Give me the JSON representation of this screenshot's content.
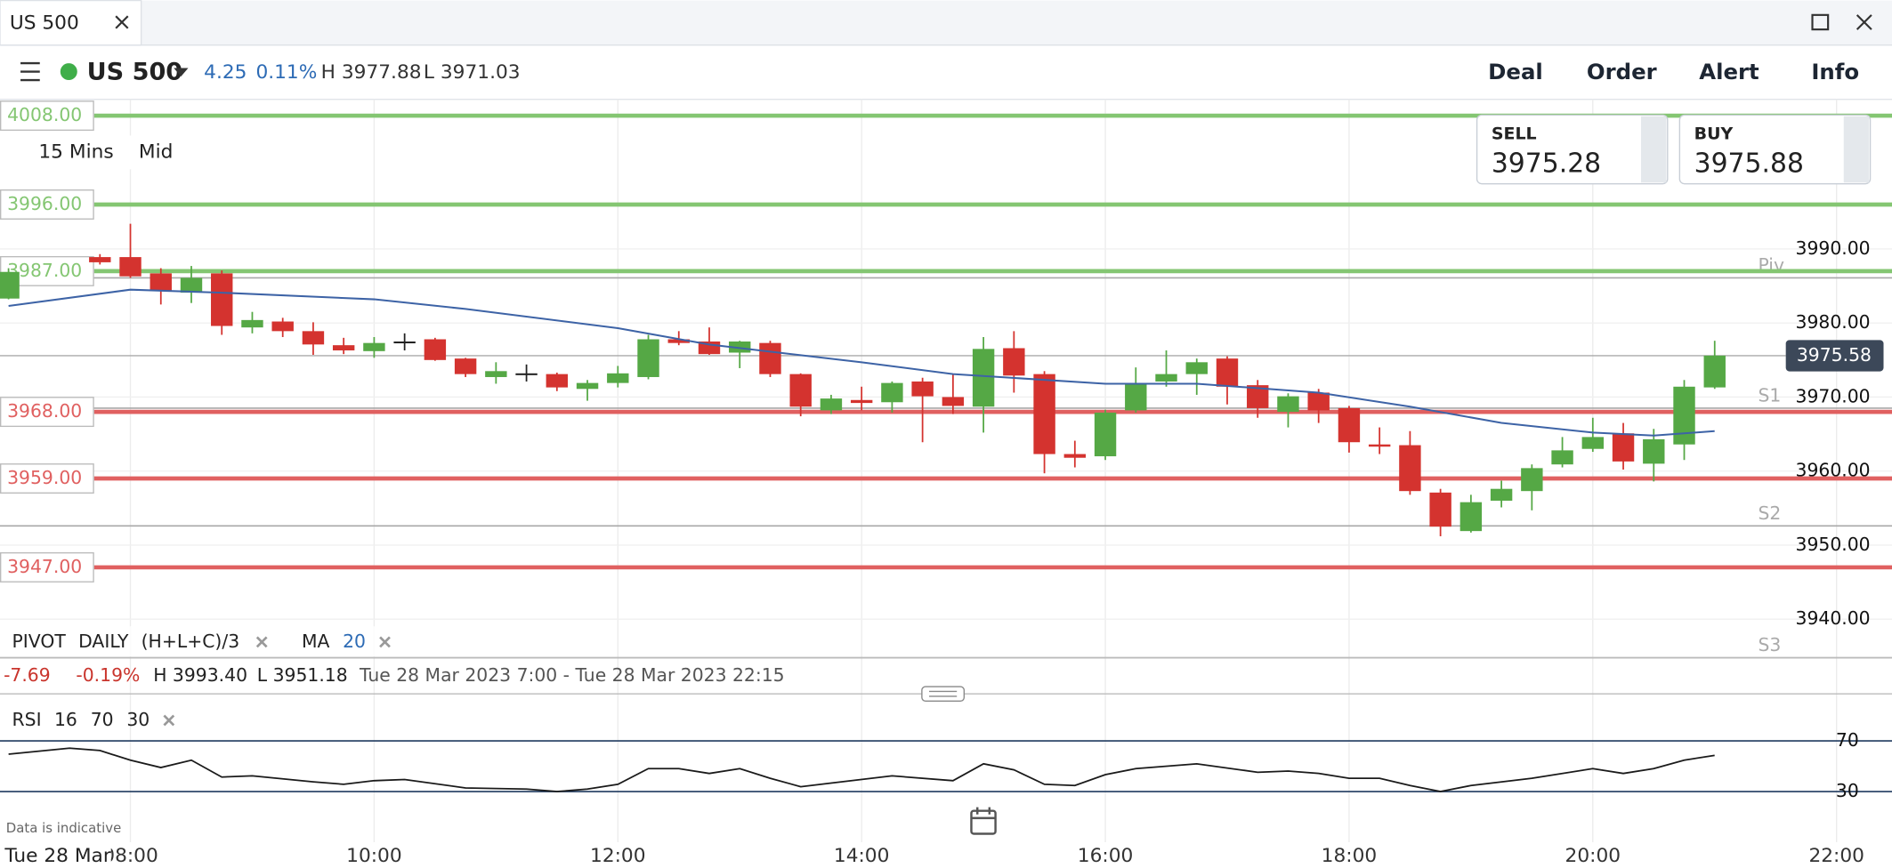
{
  "tab": {
    "title": "US 500"
  },
  "header": {
    "market": "US 500",
    "change": "4.25",
    "change_pct": "0.11%",
    "high": "H 3977.88",
    "low": "L 3971.03",
    "buttons": [
      "Deal",
      "Order",
      "Alert",
      "Info"
    ]
  },
  "chart": {
    "type": "candlestick",
    "interval": "15 Mins",
    "price_type": "Mid",
    "sell": {
      "label": "SELL",
      "price": "3975.28"
    },
    "buy": {
      "label": "BUY",
      "price": "3975.88"
    },
    "xlim": [
      6.93,
      22.455
    ],
    "xticks": [
      {
        "value": 8,
        "label": "08:00"
      },
      {
        "value": 10,
        "label": "10:00"
      },
      {
        "value": 12,
        "label": "12:00"
      },
      {
        "value": 14,
        "label": "14:00"
      },
      {
        "value": 16,
        "label": "16:00"
      },
      {
        "value": 18,
        "label": "18:00"
      },
      {
        "value": 20,
        "label": "20:00"
      },
      {
        "value": 22,
        "label": "22:00"
      }
    ],
    "ylim": [
      3934.8,
      4010.2
    ],
    "yticks": [
      {
        "value": 3990,
        "label": "3990.00"
      },
      {
        "value": 3980,
        "label": "3980.00"
      },
      {
        "value": 3970,
        "label": "3970.00"
      },
      {
        "value": 3960,
        "label": "3960.00"
      },
      {
        "value": 3950,
        "label": "3950.00"
      },
      {
        "value": 3940,
        "label": "3940.00"
      }
    ],
    "up_color": "#55a845",
    "down_color": "#d4332f",
    "candles": [
      {
        "t": 7,
        "o": 3983.3,
        "h": 3987.4,
        "l": 3983.2,
        "c": 3986.9
      },
      {
        "t": 7.75,
        "o": 3988.9,
        "h": 3989.3,
        "l": 3987.9,
        "c": 3988.2
      },
      {
        "t": 8,
        "o": 3988.9,
        "h": 3993.4,
        "l": 3986.1,
        "c": 3986.3
      },
      {
        "t": 8.25,
        "o": 3986.7,
        "h": 3987.4,
        "l": 3982.5,
        "c": 3984.3
      },
      {
        "t": 8.5,
        "o": 3984.1,
        "h": 3987.7,
        "l": 3982.7,
        "c": 3986.1
      },
      {
        "t": 8.75,
        "o": 3986.7,
        "h": 3987.1,
        "l": 3978.4,
        "c": 3979.6
      },
      {
        "t": 9,
        "o": 3979.4,
        "h": 3981.5,
        "l": 3978.6,
        "c": 3980.4
      },
      {
        "t": 9.25,
        "o": 3980.2,
        "h": 3980.7,
        "l": 3978.1,
        "c": 3978.9
      },
      {
        "t": 9.5,
        "o": 3978.9,
        "h": 3980.1,
        "l": 3975.7,
        "c": 3977.1
      },
      {
        "t": 9.75,
        "o": 3977.0,
        "h": 3978.0,
        "l": 3975.8,
        "c": 3976.3
      },
      {
        "t": 10,
        "o": 3976.2,
        "h": 3978.1,
        "l": 3975.3,
        "c": 3977.3
      },
      {
        "t": 10.25,
        "o": 3977.5,
        "h": 3978.6,
        "l": 3976.3,
        "c": 3977.5
      },
      {
        "t": 10.5,
        "o": 3977.8,
        "h": 3978.0,
        "l": 3974.9,
        "c": 3975.0
      },
      {
        "t": 10.75,
        "o": 3975.2,
        "h": 3975.3,
        "l": 3972.7,
        "c": 3973.1
      },
      {
        "t": 11,
        "o": 3972.7,
        "h": 3974.7,
        "l": 3971.8,
        "c": 3973.5
      },
      {
        "t": 11.25,
        "o": 3973.2,
        "h": 3974.4,
        "l": 3972.1,
        "c": 3973.2
      },
      {
        "t": 11.5,
        "o": 3973.1,
        "h": 3973.3,
        "l": 3970.8,
        "c": 3971.3
      },
      {
        "t": 11.75,
        "o": 3971.1,
        "h": 3972.3,
        "l": 3969.5,
        "c": 3971.9
      },
      {
        "t": 12,
        "o": 3971.9,
        "h": 3974.2,
        "l": 3971.3,
        "c": 3973.2
      },
      {
        "t": 12.25,
        "o": 3972.7,
        "h": 3978.4,
        "l": 3972.4,
        "c": 3977.8
      },
      {
        "t": 12.5,
        "o": 3977.8,
        "h": 3978.9,
        "l": 3977.0,
        "c": 3977.3
      },
      {
        "t": 12.75,
        "o": 3977.5,
        "h": 3979.4,
        "l": 3975.7,
        "c": 3975.8
      },
      {
        "t": 13,
        "o": 3976.0,
        "h": 3977.6,
        "l": 3973.9,
        "c": 3977.5
      },
      {
        "t": 13.25,
        "o": 3977.3,
        "h": 3977.6,
        "l": 3972.7,
        "c": 3973.1
      },
      {
        "t": 13.5,
        "o": 3973.1,
        "h": 3973.2,
        "l": 3967.4,
        "c": 3968.7
      },
      {
        "t": 13.75,
        "o": 3968.2,
        "h": 3970.3,
        "l": 3967.7,
        "c": 3969.8
      },
      {
        "t": 14,
        "o": 3969.6,
        "h": 3971.4,
        "l": 3968.2,
        "c": 3969.2
      },
      {
        "t": 14.25,
        "o": 3969.3,
        "h": 3972.1,
        "l": 3967.9,
        "c": 3971.9
      },
      {
        "t": 14.5,
        "o": 3972.1,
        "h": 3972.6,
        "l": 3963.9,
        "c": 3970.1
      },
      {
        "t": 14.75,
        "o": 3970.0,
        "h": 3973.1,
        "l": 3967.7,
        "c": 3968.8
      },
      {
        "t": 15,
        "o": 3968.7,
        "h": 3978.1,
        "l": 3965.2,
        "c": 3976.5
      },
      {
        "t": 15.25,
        "o": 3976.6,
        "h": 3978.9,
        "l": 3970.6,
        "c": 3972.9
      },
      {
        "t": 15.5,
        "o": 3973.1,
        "h": 3973.5,
        "l": 3959.7,
        "c": 3962.3
      },
      {
        "t": 15.75,
        "o": 3962.3,
        "h": 3964.1,
        "l": 3960.5,
        "c": 3961.8
      },
      {
        "t": 16,
        "o": 3962.0,
        "h": 3968.3,
        "l": 3961.5,
        "c": 3967.9
      },
      {
        "t": 16.25,
        "o": 3968.2,
        "h": 3974.0,
        "l": 3967.9,
        "c": 3971.8
      },
      {
        "t": 16.5,
        "o": 3972.1,
        "h": 3976.3,
        "l": 3971.4,
        "c": 3973.1
      },
      {
        "t": 16.75,
        "o": 3973.1,
        "h": 3975.2,
        "l": 3970.3,
        "c": 3974.7
      },
      {
        "t": 17,
        "o": 3975.2,
        "h": 3975.5,
        "l": 3969.0,
        "c": 3971.4
      },
      {
        "t": 17.25,
        "o": 3971.6,
        "h": 3972.3,
        "l": 3967.2,
        "c": 3968.5
      },
      {
        "t": 17.5,
        "o": 3968.0,
        "h": 3970.5,
        "l": 3965.9,
        "c": 3970.1
      },
      {
        "t": 17.75,
        "o": 3970.6,
        "h": 3971.1,
        "l": 3966.5,
        "c": 3968.2
      },
      {
        "t": 18,
        "o": 3968.5,
        "h": 3968.8,
        "l": 3962.5,
        "c": 3963.9
      },
      {
        "t": 18.25,
        "o": 3963.6,
        "h": 3965.9,
        "l": 3962.3,
        "c": 3963.3
      },
      {
        "t": 18.5,
        "o": 3963.5,
        "h": 3965.4,
        "l": 3956.8,
        "c": 3957.3
      },
      {
        "t": 18.75,
        "o": 3957.1,
        "h": 3957.6,
        "l": 3951.2,
        "c": 3952.5
      },
      {
        "t": 19,
        "o": 3951.9,
        "h": 3956.8,
        "l": 3951.7,
        "c": 3955.8
      },
      {
        "t": 19.25,
        "o": 3956.0,
        "h": 3958.7,
        "l": 3955.1,
        "c": 3957.6
      },
      {
        "t": 19.5,
        "o": 3957.3,
        "h": 3960.9,
        "l": 3954.7,
        "c": 3960.4
      },
      {
        "t": 19.75,
        "o": 3960.9,
        "h": 3964.6,
        "l": 3960.5,
        "c": 3962.8
      },
      {
        "t": 20,
        "o": 3963.0,
        "h": 3967.2,
        "l": 3962.6,
        "c": 3964.6
      },
      {
        "t": 20.25,
        "o": 3965.1,
        "h": 3966.5,
        "l": 3960.2,
        "c": 3961.3
      },
      {
        "t": 20.5,
        "o": 3961.0,
        "h": 3965.7,
        "l": 3958.6,
        "c": 3964.3
      },
      {
        "t": 20.75,
        "o": 3963.6,
        "h": 3972.3,
        "l": 3961.5,
        "c": 3971.4
      },
      {
        "t": 21,
        "o": 3971.3,
        "h": 3977.6,
        "l": 3971.1,
        "c": 3975.6
      }
    ],
    "ma": {
      "label": "MA",
      "period": "20",
      "color": "#3d63a6",
      "t": [
        7,
        8,
        8.75,
        10,
        10.75,
        12,
        12.75,
        14,
        14.75,
        16,
        16.75,
        17.75,
        18.5,
        19.25,
        20,
        20.5,
        21
      ],
      "values": [
        3982.3,
        3984.5,
        3984.1,
        3983.2,
        3981.9,
        3979.3,
        3977.1,
        3974.7,
        3973.1,
        3971.8,
        3971.8,
        3970.6,
        3968.7,
        3966.5,
        3965.2,
        3964.8,
        3965.4
      ]
    },
    "pivot": {
      "label": "PIVOT",
      "period": "DAILY",
      "formula": "(H+L+C)/3",
      "levels": [
        {
          "name": "Piv",
          "value": 3986.1
        },
        {
          "name": "S1",
          "value": 3968.5
        },
        {
          "name": "S2",
          "value": 3952.6
        },
        {
          "name": "S3",
          "value": 3934.8
        }
      ]
    },
    "levels": [
      {
        "value": 4008,
        "label": "4008.00",
        "color": "#84c672"
      },
      {
        "value": 3996,
        "label": "3996.00",
        "color": "#84c672"
      },
      {
        "value": 3987,
        "label": "3987.00",
        "color": "#84c672"
      },
      {
        "value": 3968,
        "label": "3968.00",
        "color": "#e06060"
      },
      {
        "value": 3959,
        "label": "3959.00",
        "color": "#e06060"
      },
      {
        "value": 3947,
        "label": "3947.00",
        "color": "#e06060"
      }
    ],
    "last_price": {
      "value": 3975.58,
      "label": "3975.58"
    },
    "stats": {
      "change": "-7.69",
      "change_pct": "-0.19%",
      "high": "H 3993.40",
      "low": "L 3951.18",
      "range": "Tue 28 Mar 2023 7:00 - Tue 28 Mar 2023 22:15"
    }
  },
  "rsi": {
    "label": "RSI",
    "period": "16",
    "upper": "70",
    "lower": "30",
    "color": "#1a1a1a",
    "ylim": [
      16.7,
      83.3
    ],
    "yticks": [
      70,
      30
    ],
    "t": [
      7,
      7.5,
      7.75,
      8,
      8.25,
      8.5,
      8.75,
      9,
      9.5,
      9.75,
      10,
      10.25,
      10.75,
      11.25,
      11.5,
      11.75,
      12,
      12.25,
      12.5,
      12.75,
      13,
      13.25,
      13.5,
      13.75,
      14.25,
      14.75,
      15,
      15.25,
      15.5,
      15.75,
      16,
      16.25,
      16.75,
      17.25,
      17.5,
      17.75,
      18,
      18.25,
      18.5,
      18.75,
      19,
      19.5,
      20,
      20.25,
      20.5,
      20.75,
      21
    ],
    "values": [
      59.5,
      64.3,
      62.4,
      54.8,
      49.0,
      54.8,
      41.4,
      42.4,
      37.6,
      35.7,
      38.6,
      39.5,
      32.9,
      31.9,
      30.0,
      31.9,
      35.7,
      48.1,
      48.1,
      44.3,
      48.1,
      40.5,
      33.8,
      36.7,
      42.4,
      38.6,
      51.9,
      47.1,
      35.7,
      34.8,
      43.3,
      48.1,
      51.9,
      45.2,
      46.2,
      44.3,
      40.5,
      40.5,
      34.8,
      30.0,
      34.8,
      40.5,
      48.1,
      44.3,
      48.1,
      54.8,
      58.6
    ]
  },
  "footer": {
    "note": "Data is indicative",
    "date": "Tue 28 Mar"
  }
}
